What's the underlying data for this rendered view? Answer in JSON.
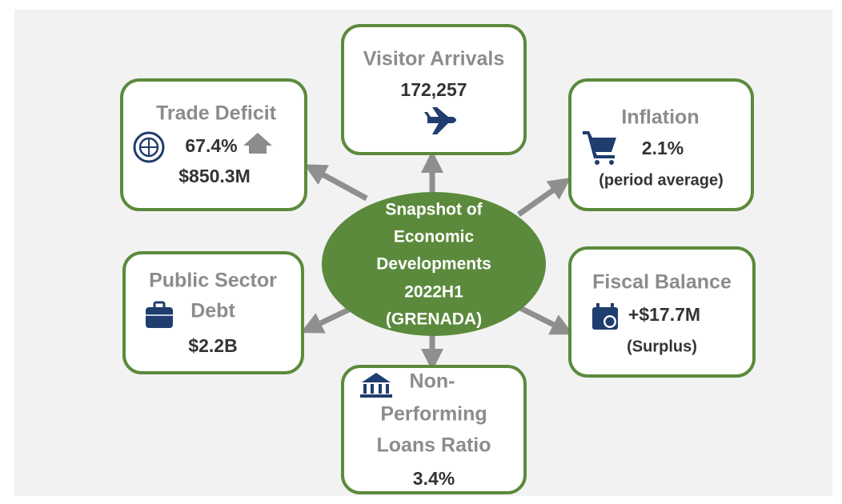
{
  "center": {
    "lines": [
      "Snapshot of",
      "Economic",
      "Developments",
      "2022H1",
      "(GRENADA)"
    ]
  },
  "nodes": [
    {
      "title_lines": [
        "Visitor Arrivals"
      ],
      "lines": [
        "172,257"
      ]
    },
    {
      "title_lines": [
        "Trade Deficit"
      ],
      "lines": [
        "67.4%",
        "$850.3M"
      ]
    },
    {
      "title_lines": [
        "Inflation"
      ],
      "lines": [
        "2.1%",
        "(period average)"
      ]
    },
    {
      "title_lines": [
        "Public Sector",
        "Debt"
      ],
      "lines": [
        "$2.2B"
      ]
    },
    {
      "title_lines": [
        "Fiscal Balance"
      ],
      "lines": [
        "+$17.7M",
        "(Surplus)"
      ]
    },
    {
      "title_lines": [
        "Non-",
        "Performing",
        "Loans Ratio"
      ],
      "lines": [
        "3.4%"
      ]
    }
  ]
}
